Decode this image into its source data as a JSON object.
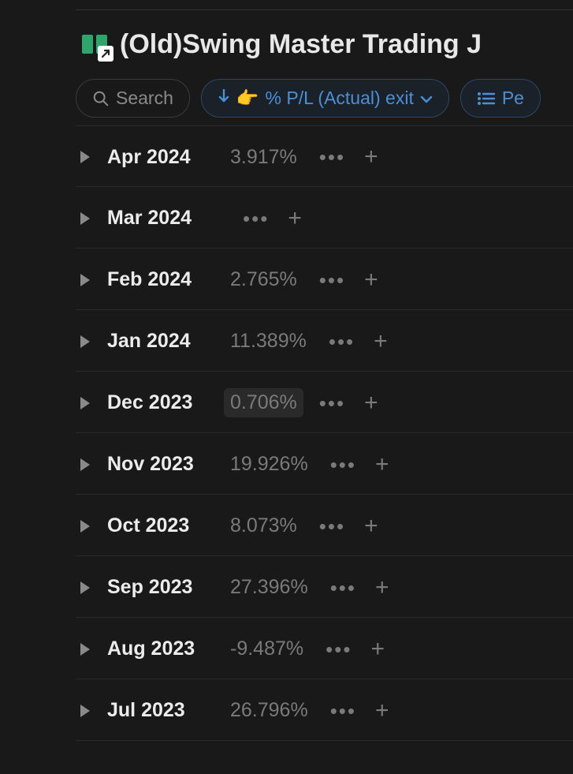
{
  "page": {
    "title": "(Old)Swing Master Trading J",
    "icon_color": "#2ea66b",
    "search_placeholder": "Search",
    "sort_label": "% P/L (Actual) exit",
    "sort_emoji": "👉",
    "view_label": "Pe"
  },
  "rows": [
    {
      "month": "Apr 2024",
      "pct": "3.917%",
      "hl": false
    },
    {
      "month": "Mar 2024",
      "pct": "",
      "hl": false
    },
    {
      "month": "Feb 2024",
      "pct": "2.765%",
      "hl": false
    },
    {
      "month": "Jan 2024",
      "pct": "11.389%",
      "hl": false
    },
    {
      "month": "Dec 2023",
      "pct": "0.706%",
      "hl": true
    },
    {
      "month": "Nov 2023",
      "pct": "19.926%",
      "hl": false
    },
    {
      "month": "Oct 2023",
      "pct": "8.073%",
      "hl": false
    },
    {
      "month": "Sep 2023",
      "pct": "27.396%",
      "hl": false
    },
    {
      "month": "Aug 2023",
      "pct": "-9.487%",
      "hl": false
    },
    {
      "month": "Jul 2023",
      "pct": "26.796%",
      "hl": false
    }
  ],
  "colors": {
    "bg": "#191919",
    "text_primary": "#ececec",
    "text_muted": "#7a7a7a",
    "accent_blue": "#4a8fd8",
    "divider": "#2a2a2a"
  }
}
